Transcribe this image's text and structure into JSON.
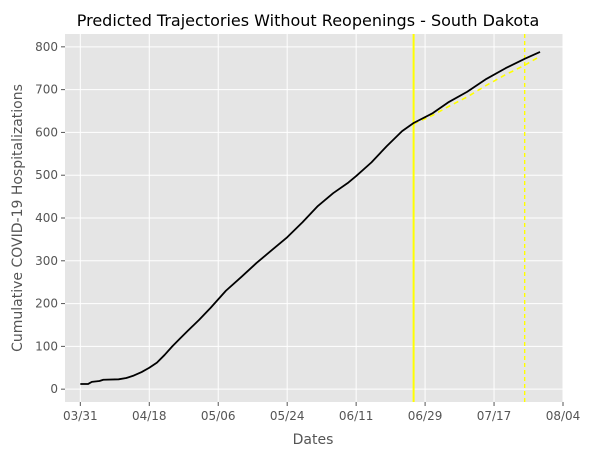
{
  "chart_data": {
    "type": "line",
    "title": "Predicted Trajectories Without Reopenings - South Dakota",
    "xlabel": "Dates",
    "ylabel": "Cumulative COVID-19 Hospitalizations",
    "grid": true,
    "xlim": [
      "2020-03-27",
      "2020-08-04"
    ],
    "ylim": [
      -30,
      830
    ],
    "x_ticks": [
      "2020-03-31",
      "2020-04-18",
      "2020-05-06",
      "2020-05-24",
      "2020-06-11",
      "2020-06-29",
      "2020-07-17",
      "2020-08-04"
    ],
    "x_tick_labels": [
      "03/31",
      "04/18",
      "05/06",
      "05/24",
      "06/11",
      "06/29",
      "07/17",
      "08/04"
    ],
    "y_ticks": [
      0,
      100,
      200,
      300,
      400,
      500,
      600,
      700,
      800
    ],
    "vertical_lines": [
      {
        "x": "2020-06-26",
        "color": "#ffff00",
        "style": "solid"
      },
      {
        "x": "2020-07-25",
        "color": "#ffff00",
        "style": "dashed"
      }
    ],
    "series": [
      {
        "color": "#000000",
        "style": "solid",
        "points": [
          [
            "2020-03-31",
            12
          ],
          [
            "2020-04-02",
            12
          ],
          [
            "2020-04-03",
            17
          ],
          [
            "2020-04-05",
            19
          ],
          [
            "2020-04-06",
            22
          ],
          [
            "2020-04-10",
            23
          ],
          [
            "2020-04-12",
            26
          ],
          [
            "2020-04-14",
            32
          ],
          [
            "2020-04-16",
            40
          ],
          [
            "2020-04-18",
            50
          ],
          [
            "2020-04-20",
            62
          ],
          [
            "2020-04-22",
            80
          ],
          [
            "2020-04-24",
            100
          ],
          [
            "2020-04-26",
            118
          ],
          [
            "2020-04-28",
            136
          ],
          [
            "2020-05-01",
            162
          ],
          [
            "2020-05-04",
            190
          ],
          [
            "2020-05-08",
            230
          ],
          [
            "2020-05-12",
            262
          ],
          [
            "2020-05-16",
            295
          ],
          [
            "2020-05-20",
            325
          ],
          [
            "2020-05-24",
            355
          ],
          [
            "2020-05-28",
            390
          ],
          [
            "2020-06-01",
            428
          ],
          [
            "2020-06-05",
            458
          ],
          [
            "2020-06-09",
            483
          ],
          [
            "2020-06-11",
            498
          ],
          [
            "2020-06-15",
            530
          ],
          [
            "2020-06-19",
            568
          ],
          [
            "2020-06-23",
            603
          ],
          [
            "2020-06-26",
            622
          ],
          [
            "2020-07-01",
            645
          ],
          [
            "2020-07-05",
            670
          ],
          [
            "2020-07-10",
            695
          ],
          [
            "2020-07-15",
            725
          ],
          [
            "2020-07-20",
            750
          ],
          [
            "2020-07-25",
            772
          ],
          [
            "2020-07-29",
            788
          ]
        ]
      },
      {
        "color": "#ffff00",
        "style": "dashed",
        "points": [
          [
            "2020-06-26",
            620
          ],
          [
            "2020-07-01",
            640
          ],
          [
            "2020-07-05",
            660
          ],
          [
            "2020-07-10",
            683
          ],
          [
            "2020-07-15",
            710
          ],
          [
            "2020-07-20",
            735
          ],
          [
            "2020-07-25",
            757
          ],
          [
            "2020-07-29",
            778
          ]
        ]
      }
    ]
  }
}
